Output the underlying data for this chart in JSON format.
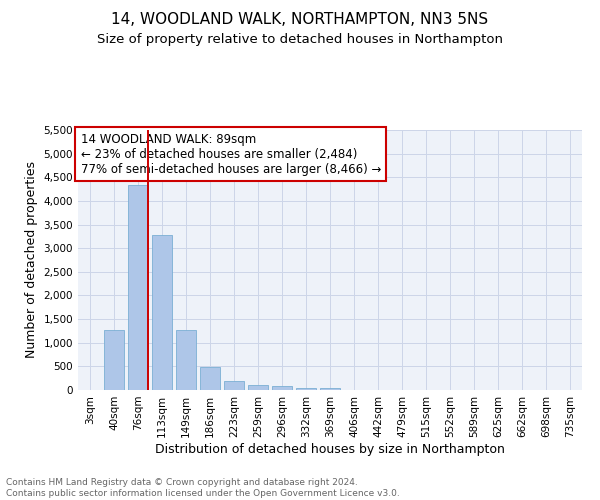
{
  "title1": "14, WOODLAND WALK, NORTHAMPTON, NN3 5NS",
  "title2": "Size of property relative to detached houses in Northampton",
  "xlabel": "Distribution of detached houses by size in Northampton",
  "ylabel": "Number of detached properties",
  "bar_labels": [
    "3sqm",
    "40sqm",
    "76sqm",
    "113sqm",
    "149sqm",
    "186sqm",
    "223sqm",
    "259sqm",
    "296sqm",
    "332sqm",
    "369sqm",
    "406sqm",
    "442sqm",
    "479sqm",
    "515sqm",
    "552sqm",
    "589sqm",
    "625sqm",
    "662sqm",
    "698sqm",
    "735sqm"
  ],
  "bar_values": [
    0,
    1270,
    4330,
    3280,
    1270,
    480,
    200,
    100,
    80,
    50,
    50,
    0,
    0,
    0,
    0,
    0,
    0,
    0,
    0,
    0,
    0
  ],
  "bar_color": "#aec6e8",
  "bar_edge_color": "#7bafd4",
  "grid_color": "#ccd5e8",
  "bg_color": "#eef2f9",
  "vline_color": "#cc0000",
  "vline_index": 2,
  "annotation_text": "14 WOODLAND WALK: 89sqm\n← 23% of detached houses are smaller (2,484)\n77% of semi-detached houses are larger (8,466) →",
  "annotation_box_color": "#ffffff",
  "annotation_box_edge": "#cc0000",
  "ylim": [
    0,
    5500
  ],
  "yticks": [
    0,
    500,
    1000,
    1500,
    2000,
    2500,
    3000,
    3500,
    4000,
    4500,
    5000,
    5500
  ],
  "footnote": "Contains HM Land Registry data © Crown copyright and database right 2024.\nContains public sector information licensed under the Open Government Licence v3.0.",
  "title1_fontsize": 11,
  "title2_fontsize": 9.5,
  "xlabel_fontsize": 9,
  "ylabel_fontsize": 9,
  "tick_fontsize": 7.5,
  "annotation_fontsize": 8.5,
  "footnote_fontsize": 6.5
}
